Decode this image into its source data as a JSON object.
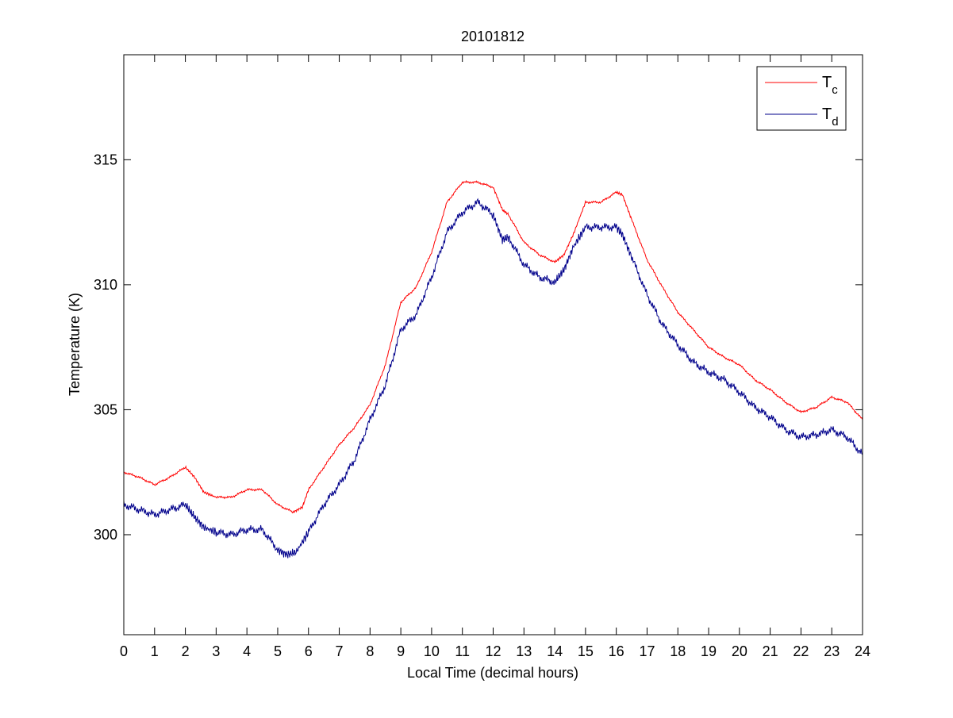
{
  "chart_data": {
    "type": "line",
    "title": "20101812",
    "xlabel": "Local Time (decimal hours)",
    "ylabel": "Temperature (K)",
    "xlim": [
      0,
      24
    ],
    "ylim": [
      296,
      319.2
    ],
    "xticks": [
      0,
      1,
      2,
      3,
      4,
      5,
      6,
      7,
      8,
      9,
      10,
      11,
      12,
      13,
      14,
      15,
      16,
      17,
      18,
      19,
      20,
      21,
      22,
      23,
      24
    ],
    "yticks": [
      300,
      305,
      310,
      315
    ],
    "grid": false,
    "legend_position": "top-right",
    "series": [
      {
        "name": "Tc",
        "name_base": "T",
        "name_sub": "c",
        "color": "#ff0000",
        "x": [
          0,
          0.5,
          1,
          1.5,
          2,
          2.3,
          2.6,
          3,
          3.5,
          4,
          4.5,
          5,
          5.5,
          5.8,
          6,
          6.5,
          7,
          7.5,
          8,
          8.5,
          9,
          9.5,
          10,
          10.5,
          11,
          11.5,
          12,
          12.3,
          12.5,
          13,
          13.5,
          14,
          14.3,
          14.6,
          15,
          15.5,
          16,
          16.2,
          16.5,
          17,
          17.5,
          18,
          18.5,
          19,
          19.5,
          20,
          20.5,
          21,
          21.5,
          22,
          22.5,
          23,
          23.5,
          24
        ],
        "y": [
          302.5,
          302.3,
          302.0,
          302.3,
          302.7,
          302.3,
          301.7,
          301.5,
          301.5,
          301.8,
          301.8,
          301.2,
          300.9,
          301.1,
          301.8,
          302.7,
          303.6,
          304.3,
          305.2,
          306.8,
          309.3,
          309.9,
          311.3,
          313.3,
          314.1,
          314.1,
          313.9,
          313.0,
          312.8,
          311.7,
          311.2,
          310.9,
          311.2,
          312.0,
          313.3,
          313.3,
          313.7,
          313.6,
          312.6,
          311.0,
          309.9,
          308.9,
          308.2,
          307.5,
          307.1,
          306.8,
          306.2,
          305.8,
          305.3,
          304.9,
          305.1,
          305.5,
          305.3,
          304.6
        ]
      },
      {
        "name": "Td",
        "name_base": "T",
        "name_sub": "d",
        "color": "#00008b",
        "x": [
          0,
          0.5,
          1,
          1.5,
          2,
          2.3,
          2.6,
          3,
          3.5,
          4,
          4.5,
          5,
          5.3,
          5.6,
          6,
          6.5,
          7,
          7.5,
          8,
          8.5,
          9,
          9.5,
          10,
          10.5,
          11,
          11.5,
          12,
          12.3,
          12.5,
          13,
          13.5,
          14,
          14.3,
          14.6,
          15,
          15.5,
          16,
          16.2,
          16.5,
          17,
          17.5,
          18,
          18.5,
          19,
          19.5,
          20,
          20.5,
          21,
          21.5,
          22,
          22.5,
          23,
          23.5,
          24
        ],
        "y": [
          301.2,
          301.0,
          300.8,
          301.0,
          301.2,
          300.7,
          300.3,
          300.1,
          300.0,
          300.2,
          300.2,
          299.4,
          299.2,
          299.3,
          300.1,
          301.2,
          302.0,
          303.0,
          304.6,
          306.0,
          308.2,
          308.8,
          310.3,
          312.1,
          312.9,
          313.3,
          312.8,
          311.8,
          311.9,
          310.8,
          310.3,
          310.1,
          310.6,
          311.5,
          312.3,
          312.3,
          312.3,
          312.0,
          311.1,
          309.6,
          308.4,
          307.6,
          306.9,
          306.5,
          306.2,
          305.7,
          305.1,
          304.7,
          304.2,
          303.9,
          304.0,
          304.2,
          303.9,
          303.2
        ]
      }
    ]
  }
}
